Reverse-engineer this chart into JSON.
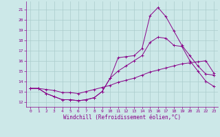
{
  "xlabel": "Windchill (Refroidissement éolien,°C)",
  "bg_color": "#cce8e8",
  "grid_color": "#aacccc",
  "line_color": "#880088",
  "x_ticks": [
    0,
    1,
    2,
    3,
    4,
    5,
    6,
    7,
    8,
    9,
    10,
    11,
    12,
    13,
    14,
    15,
    16,
    17,
    18,
    19,
    20,
    21,
    22,
    23
  ],
  "ylim": [
    11.5,
    21.8
  ],
  "xlim": [
    -0.5,
    23.5
  ],
  "yticks": [
    12,
    13,
    14,
    15,
    16,
    17,
    18,
    19,
    20,
    21
  ],
  "line1_x": [
    0,
    1,
    2,
    3,
    4,
    5,
    6,
    7,
    8,
    9,
    10,
    11,
    12,
    13,
    14,
    15,
    16,
    17,
    18,
    19,
    20,
    21,
    22,
    23
  ],
  "line1_y": [
    13.3,
    13.3,
    12.8,
    12.5,
    12.2,
    12.2,
    12.1,
    12.2,
    12.4,
    13.0,
    14.3,
    16.3,
    16.4,
    16.5,
    17.2,
    20.4,
    21.2,
    20.3,
    18.9,
    17.5,
    16.5,
    15.5,
    14.7,
    14.6
  ],
  "line2_x": [
    0,
    1,
    2,
    3,
    4,
    5,
    6,
    7,
    8,
    9,
    10,
    11,
    12,
    13,
    14,
    15,
    16,
    17,
    18,
    19,
    20,
    21,
    22,
    23
  ],
  "line2_y": [
    13.3,
    13.3,
    12.8,
    12.5,
    12.2,
    12.2,
    12.1,
    12.2,
    12.4,
    13.0,
    14.3,
    15.0,
    15.5,
    16.0,
    16.5,
    17.8,
    18.3,
    18.2,
    17.5,
    17.4,
    16.0,
    15.0,
    14.0,
    13.5
  ],
  "line3_x": [
    0,
    1,
    2,
    3,
    4,
    5,
    6,
    7,
    8,
    9,
    10,
    11,
    12,
    13,
    14,
    15,
    16,
    17,
    18,
    19,
    20,
    21,
    22,
    23
  ],
  "line3_y": [
    13.3,
    13.3,
    13.2,
    13.1,
    12.9,
    12.9,
    12.8,
    13.0,
    13.2,
    13.4,
    13.6,
    13.9,
    14.1,
    14.3,
    14.6,
    14.9,
    15.1,
    15.3,
    15.5,
    15.7,
    15.8,
    15.9,
    16.0,
    14.8
  ]
}
